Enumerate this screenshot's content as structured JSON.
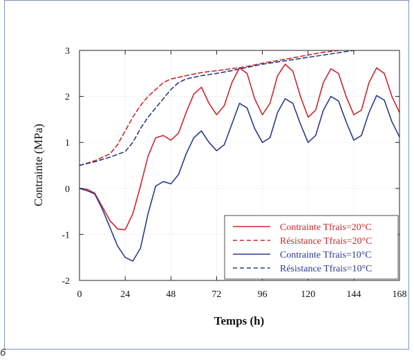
{
  "figure_number": "6",
  "chart_data": {
    "type": "line",
    "xlabel": "Temps (h)",
    "ylabel": "Contrainte (MPa)",
    "xlim": [
      0,
      168
    ],
    "ylim": [
      -2,
      3
    ],
    "xticks": [
      0,
      24,
      48,
      72,
      96,
      120,
      144,
      168
    ],
    "yticks": [
      -2,
      -1,
      0,
      1,
      2,
      3
    ],
    "grid": true,
    "legend_position": "bottom-right",
    "series": [
      {
        "name": "Contrainte Tfrais=20°C",
        "color": "#c8282a",
        "dash": "solid",
        "x": [
          0,
          4,
          8,
          12,
          16,
          20,
          24,
          28,
          32,
          36,
          40,
          44,
          48,
          52,
          56,
          60,
          64,
          68,
          72,
          76,
          80,
          84,
          88,
          92,
          96,
          100,
          104,
          108,
          112,
          116,
          120,
          124,
          128,
          132,
          136,
          140,
          144,
          148,
          152,
          156,
          160,
          164,
          168
        ],
        "y": [
          0,
          -0.02,
          -0.1,
          -0.4,
          -0.7,
          -0.88,
          -0.9,
          -0.55,
          0.05,
          0.7,
          1.1,
          1.15,
          1.05,
          1.2,
          1.65,
          2.05,
          2.2,
          1.85,
          1.6,
          1.8,
          2.3,
          2.62,
          2.5,
          1.95,
          1.6,
          1.85,
          2.45,
          2.7,
          2.55,
          2.0,
          1.55,
          1.7,
          2.3,
          2.6,
          2.5,
          2.0,
          1.6,
          1.7,
          2.3,
          2.62,
          2.5,
          2.0,
          1.65
        ]
      },
      {
        "name": "Résistance Tfrais=20°C",
        "color": "#c8282a",
        "dash": "dashed",
        "x": [
          0,
          8,
          16,
          20,
          24,
          28,
          32,
          36,
          40,
          44,
          48,
          56,
          64,
          72,
          80,
          88,
          96,
          104,
          112,
          120,
          128,
          136,
          144,
          152,
          160,
          168
        ],
        "y": [
          0.5,
          0.6,
          0.75,
          0.95,
          1.25,
          1.55,
          1.8,
          2.0,
          2.15,
          2.3,
          2.38,
          2.45,
          2.52,
          2.56,
          2.6,
          2.65,
          2.72,
          2.78,
          2.84,
          2.9,
          2.96,
          3.0,
          3.02,
          3.06,
          3.1,
          3.14
        ]
      },
      {
        "name": "Contrainte Tfrais=10°C",
        "color": "#2b3a8c",
        "dash": "solid",
        "x": [
          0,
          4,
          8,
          12,
          16,
          20,
          24,
          28,
          32,
          36,
          40,
          44,
          48,
          52,
          56,
          60,
          64,
          68,
          72,
          76,
          80,
          84,
          88,
          92,
          96,
          100,
          104,
          108,
          112,
          116,
          120,
          124,
          128,
          132,
          136,
          140,
          144,
          148,
          152,
          156,
          160,
          164,
          168
        ],
        "y": [
          0,
          -0.05,
          -0.12,
          -0.45,
          -0.85,
          -1.25,
          -1.5,
          -1.58,
          -1.3,
          -0.55,
          0.05,
          0.15,
          0.1,
          0.3,
          0.75,
          1.1,
          1.25,
          1.0,
          0.82,
          0.95,
          1.4,
          1.85,
          1.75,
          1.3,
          1.0,
          1.1,
          1.65,
          1.95,
          1.85,
          1.4,
          1.0,
          1.15,
          1.7,
          2.0,
          1.9,
          1.45,
          1.05,
          1.15,
          1.65,
          2.02,
          1.92,
          1.45,
          1.12
        ]
      },
      {
        "name": "Résistance Tfrais=10°C",
        "color": "#2b3a8c",
        "dash": "dashed",
        "x": [
          0,
          8,
          16,
          24,
          28,
          32,
          36,
          40,
          44,
          48,
          52,
          56,
          64,
          72,
          80,
          88,
          96,
          104,
          112,
          120,
          128,
          136,
          144,
          152,
          160,
          168
        ],
        "y": [
          0.5,
          0.58,
          0.68,
          0.8,
          1.0,
          1.3,
          1.55,
          1.75,
          1.95,
          2.15,
          2.3,
          2.38,
          2.45,
          2.5,
          2.56,
          2.63,
          2.7,
          2.75,
          2.8,
          2.85,
          2.9,
          2.95,
          3.0,
          3.04,
          3.08,
          3.12
        ]
      }
    ]
  }
}
